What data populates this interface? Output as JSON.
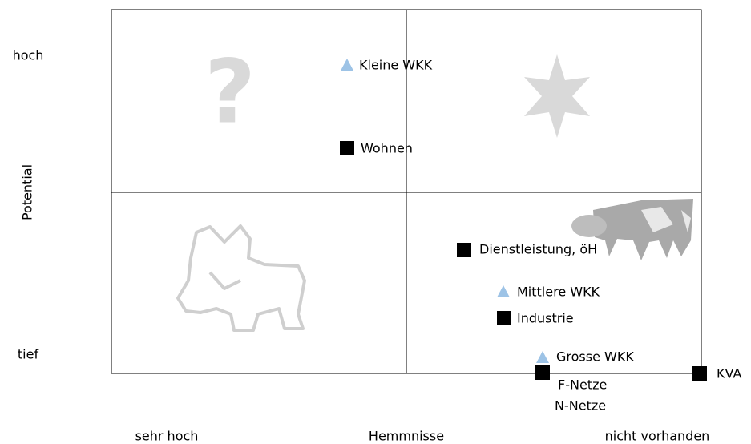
{
  "y_axis": {
    "title": "Potential",
    "high": "hoch",
    "low": "tief"
  },
  "x_axis": {
    "title": "Hemmnisse",
    "left": "sehr hoch",
    "right": "nicht vorhanden"
  },
  "items": [
    {
      "label": "Kleine WKK",
      "marker": "triangle"
    },
    {
      "label": "Wohnen",
      "marker": "square"
    },
    {
      "label": "Dienstleistung, öH",
      "marker": "square"
    },
    {
      "label": "Mittlere WKK",
      "marker": "triangle"
    },
    {
      "label": "Industrie",
      "marker": "square"
    },
    {
      "label": "Grosse WKK",
      "marker": "triangle"
    },
    {
      "label": "F-Netze",
      "marker": "square"
    },
    {
      "label": "N-Netze"
    },
    {
      "label": "KVA",
      "marker": "square"
    }
  ]
}
